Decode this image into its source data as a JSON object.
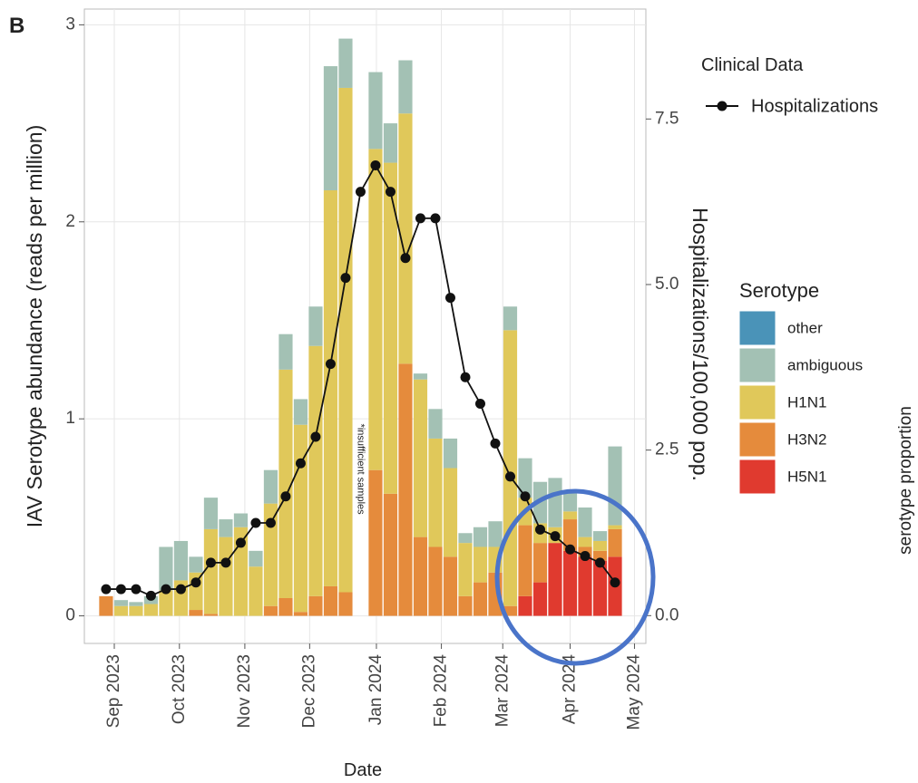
{
  "chart_data": {
    "type": "bar",
    "panel_label": "B",
    "y_label": "IAV Serotype abundance (reads per million)",
    "y2_label": "Hospitalizations/100,000 pop.",
    "x_label": "Date",
    "side_label": "serotype proportion",
    "annotation": "*insufficient samples",
    "line_legend_title": "Clinical Data",
    "bar_legend_title": "Serotype",
    "stacked": true,
    "grid": true,
    "categories": [
      null,
      null,
      null,
      null,
      null,
      null,
      null,
      null,
      null,
      null,
      null,
      null,
      null,
      null,
      null,
      null,
      null,
      null,
      null,
      null,
      null,
      null,
      null,
      null,
      null,
      null,
      null,
      null,
      null,
      null,
      null,
      null,
      null,
      null,
      null
    ],
    "xlim": [
      -1.45,
      36.06
    ],
    "xticks": [
      {
        "value": 0.55,
        "label": "Sep 2023"
      },
      {
        "value": 4.9,
        "label": "Oct 2023"
      },
      {
        "value": 9.27,
        "label": "Nov 2023"
      },
      {
        "value": 13.6,
        "label": "Dec 2023"
      },
      {
        "value": 18.06,
        "label": "Jan 2024"
      },
      {
        "value": 22.4,
        "label": "Feb 2024"
      },
      {
        "value": 26.5,
        "label": "Mar 2024"
      },
      {
        "value": 31,
        "label": "Apr 2024"
      },
      {
        "value": 35.3,
        "label": "May 2024"
      }
    ],
    "ylim": [
      -0.14,
      3.08
    ],
    "yticks": [
      0,
      1,
      2,
      3
    ],
    "y2lim": [
      -0.42,
      9.16
    ],
    "y2ticks": [
      {
        "value": 0,
        "label": "0.0"
      },
      2.5,
      {
        "value": 5,
        "label": "5.0"
      },
      7.5
    ],
    "series": [
      {
        "name": "other",
        "color": "#4a93b8",
        "values": [
          0,
          0,
          0,
          0,
          0,
          0,
          0,
          0,
          0,
          0,
          0,
          0,
          0,
          0,
          0,
          0,
          0,
          null,
          0,
          0,
          0,
          0,
          0,
          0,
          0,
          0,
          0,
          0,
          0,
          0,
          0,
          0,
          0,
          0,
          0
        ]
      },
      {
        "name": "ambiguous",
        "color": "#a3c1b4",
        "values": [
          0,
          0.03,
          0.02,
          0.04,
          0.22,
          0.2,
          0.08,
          0.16,
          0.09,
          0.07,
          0.08,
          0.17,
          0.18,
          0.13,
          0.2,
          0.63,
          0.25,
          null,
          0.39,
          0.2,
          0.27,
          0.03,
          0.15,
          0.15,
          0.05,
          0.1,
          0.13,
          0.12,
          0.2,
          0.21,
          0.25,
          0.1,
          0.15,
          0.05,
          0.4
        ]
      },
      {
        "name": "H1N1",
        "color": "#e0c85a",
        "values": [
          0,
          0.05,
          0.05,
          0.06,
          0.13,
          0.18,
          0.19,
          0.43,
          0.4,
          0.45,
          0.25,
          0.52,
          1.16,
          0.95,
          1.27,
          2.01,
          2.56,
          null,
          1.63,
          1.68,
          1.27,
          0.8,
          0.55,
          0.45,
          0.27,
          0.18,
          0.13,
          1.4,
          0.14,
          0.1,
          0.08,
          0.04,
          0.05,
          0.05,
          0.02
        ]
      },
      {
        "name": "H3N2",
        "color": "#e58b3c",
        "values": [
          0.1,
          0,
          0,
          0,
          0,
          0,
          0.03,
          0.01,
          0,
          0,
          0,
          0.05,
          0.09,
          0.02,
          0.1,
          0.15,
          0.12,
          null,
          0.74,
          0.62,
          1.28,
          0.4,
          0.35,
          0.3,
          0.1,
          0.17,
          0.22,
          0.05,
          0.36,
          0.2,
          0,
          0.16,
          0.05,
          0.05,
          0.14
        ]
      },
      {
        "name": "H5N1",
        "color": "#e03a2f",
        "values": [
          0,
          0,
          0,
          0,
          0,
          0,
          0,
          0,
          0,
          0,
          0,
          0,
          0,
          0,
          0,
          0,
          0,
          null,
          0,
          0,
          0,
          0,
          0,
          0,
          0,
          0,
          0,
          0,
          0.1,
          0.17,
          0.37,
          0.33,
          0.3,
          0.28,
          0.3
        ]
      },
      {
        "name": "Hospitalizations",
        "type": "line",
        "axis": "y2",
        "color": "#111111",
        "values": [
          0.4,
          0.4,
          0.4,
          0.3,
          0.4,
          0.4,
          0.5,
          0.8,
          0.8,
          1.1,
          1.4,
          1.4,
          1.8,
          2.3,
          2.7,
          3.8,
          5.1,
          6.4,
          6.8,
          6.4,
          5.4,
          6.0,
          6.0,
          4.8,
          3.6,
          3.2,
          2.6,
          2.1,
          1.8,
          1.3,
          1.2,
          1.0,
          0.9,
          0.8,
          0.5
        ]
      }
    ]
  }
}
